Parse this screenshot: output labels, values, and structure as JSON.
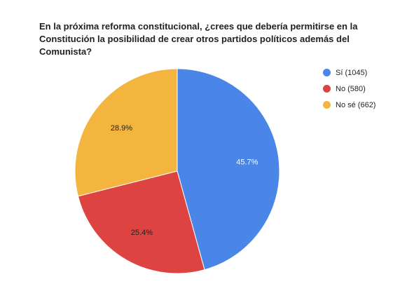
{
  "chart_data": {
    "type": "pie",
    "title": "En la próxima reforma constitucional, ¿crees que debería permitirse en la Constitución la posibilidad de crear otros partidos políticos además del Comunista?",
    "slices": [
      {
        "label": "Sí",
        "count": 1045,
        "legend": "Sí (1045)",
        "percent": 45.7,
        "percent_label": "45.7%",
        "color": "#4a86e8",
        "label_color": "#ffffff"
      },
      {
        "label": "No",
        "count": 580,
        "legend": "No (580)",
        "percent": 25.4,
        "percent_label": "25.4%",
        "color": "#dd4340",
        "label_color": "#222222"
      },
      {
        "label": "No sé",
        "count": 662,
        "legend": "No sé (662)",
        "percent": 28.9,
        "percent_label": "28.9%",
        "color": "#f4b53f",
        "label_color": "#222222"
      }
    ],
    "legend_position": "right"
  }
}
